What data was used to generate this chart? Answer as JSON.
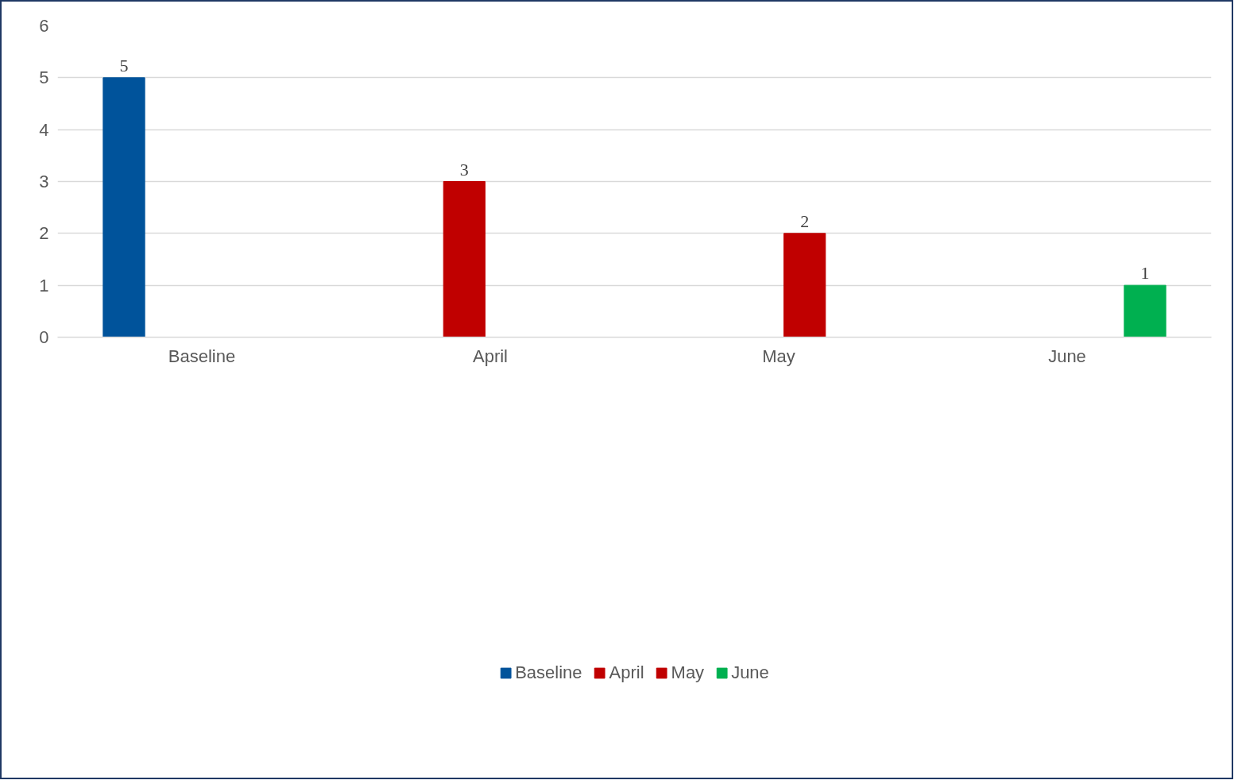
{
  "chart_data": {
    "type": "bar",
    "categories": [
      "Baseline",
      "April",
      "May",
      "June"
    ],
    "series": [
      {
        "name": "Baseline",
        "color": "#00539b",
        "values": [
          5,
          null,
          null,
          null
        ]
      },
      {
        "name": "April",
        "color": "#c00000",
        "values": [
          null,
          3,
          null,
          null
        ]
      },
      {
        "name": "May",
        "color": "#c00000",
        "values": [
          null,
          null,
          2,
          null
        ]
      },
      {
        "name": "June",
        "color": "#00b050",
        "values": [
          null,
          null,
          null,
          1
        ]
      }
    ],
    "ylim": [
      0,
      6
    ],
    "yticks": [
      0,
      1,
      2,
      3,
      4,
      5,
      6
    ],
    "grid": "y",
    "legend": "bottom",
    "data_labels": true
  }
}
